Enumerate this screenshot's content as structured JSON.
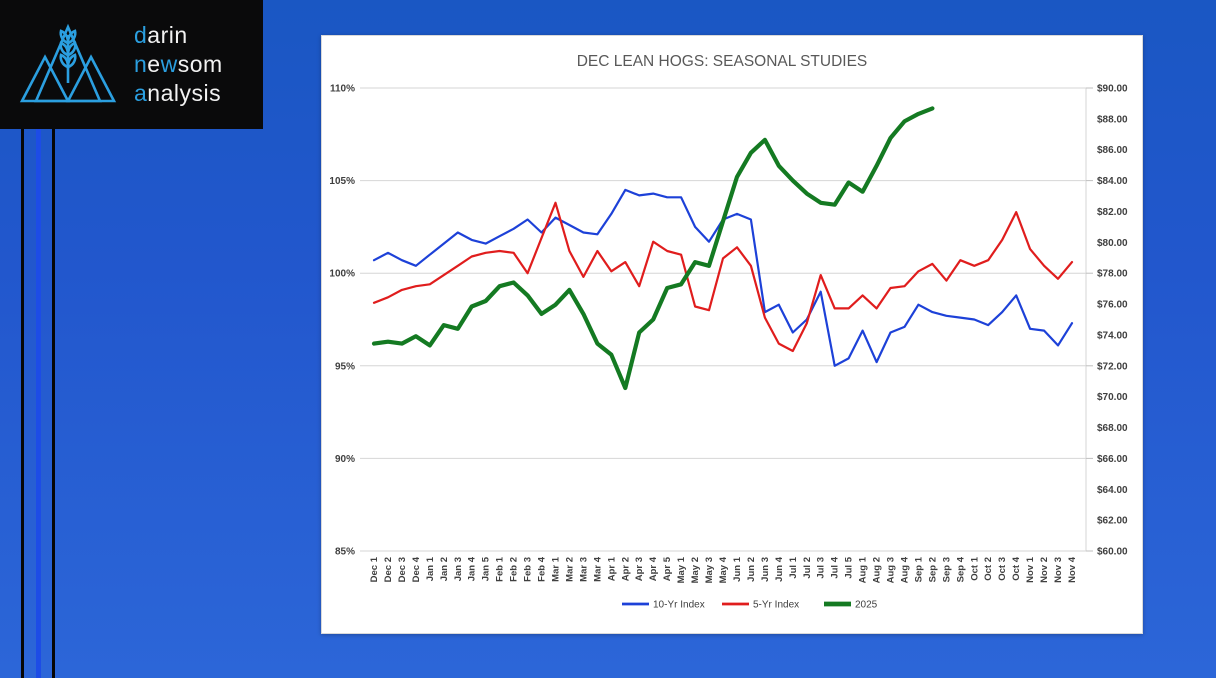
{
  "page": {
    "background_top": "#1a57c3",
    "background_bottom": "#2c66d8"
  },
  "logo": {
    "background": "#0a0a0b",
    "accent_color": "#2b9fe0",
    "text_color": "#f2f2f2",
    "icon": "mountains-wheat-icon",
    "lines": [
      [
        {
          "t": "d",
          "accent": true
        },
        {
          "t": "arin",
          "accent": false
        }
      ],
      [
        {
          "t": "n",
          "accent": true
        },
        {
          "t": "e",
          "accent": false
        },
        {
          "t": "w",
          "accent": true
        },
        {
          "t": "som",
          "accent": false
        }
      ],
      [
        {
          "t": "a",
          "accent": true
        },
        {
          "t": "nalysis",
          "accent": false
        }
      ]
    ]
  },
  "decor": {
    "stripes": [
      {
        "name": "black-stripe-left",
        "color": "#060606",
        "x": 21,
        "width": 3
      },
      {
        "name": "blue-stripe",
        "color": "#1d4ce6",
        "x": 36,
        "width": 5
      },
      {
        "name": "black-stripe-right",
        "color": "#060606",
        "x": 52,
        "width": 3
      }
    ]
  },
  "chart_data": {
    "type": "line",
    "title": "DEC LEAN HOGS: SEASONAL STUDIES",
    "grid": true,
    "legend_position": "bottom",
    "left_axis": {
      "format": "percent",
      "min": 85,
      "max": 110,
      "step": 5,
      "labels": [
        "110%",
        "105%",
        "100%",
        "95%",
        "90%",
        "85%"
      ]
    },
    "right_axis": {
      "format": "dollar",
      "min": 60,
      "max": 90,
      "step": 2,
      "labels": [
        "$90.00",
        "$88.00",
        "$86.00",
        "$84.00",
        "$82.00",
        "$80.00",
        "$78.00",
        "$76.00",
        "$74.00",
        "$72.00",
        "$70.00",
        "$68.00",
        "$66.00",
        "$64.00",
        "$62.00",
        "$60.00"
      ]
    },
    "categories": [
      "Dec 1",
      "Dec 2",
      "Dec 3",
      "Dec 4",
      "Jan 1",
      "Jan 2",
      "Jan 3",
      "Jan 4",
      "Jan 5",
      "Feb 1",
      "Feb 2",
      "Feb 3",
      "Feb 4",
      "Mar 1",
      "Mar 2",
      "Mar 3",
      "Mar 4",
      "Apr 1",
      "Apr 2",
      "Apr 3",
      "Apr 4",
      "Apr 5",
      "May 1",
      "May 2",
      "May 3",
      "May 4",
      "Jun 1",
      "Jun 2",
      "Jun 3",
      "Jun 4",
      "Jul 1",
      "Jul 2",
      "Jul 3",
      "Jul 4",
      "Jul 5",
      "Aug 1",
      "Aug 2",
      "Aug 3",
      "Aug 4",
      "Sep 1",
      "Sep 2",
      "Sep 3",
      "Sep 4",
      "Oct 1",
      "Oct 2",
      "Oct 3",
      "Oct 4",
      "Nov 1",
      "Nov 2",
      "Nov 3",
      "Nov 4"
    ],
    "series": [
      {
        "name": "10-Yr Index",
        "color": "#1d41d8",
        "stroke_width": 2.2,
        "values": [
          100.7,
          101.1,
          100.7,
          100.4,
          101.0,
          101.6,
          102.2,
          101.8,
          101.6,
          102.0,
          102.4,
          102.9,
          102.2,
          103.0,
          102.6,
          102.2,
          102.1,
          103.2,
          104.5,
          104.2,
          104.3,
          104.1,
          104.1,
          102.5,
          101.7,
          102.9,
          103.2,
          102.9,
          97.9,
          98.3,
          96.8,
          97.5,
          99.0,
          95.0,
          95.4,
          96.9,
          95.2,
          96.8,
          97.1,
          98.3,
          97.9,
          97.7,
          97.6,
          97.5,
          97.2,
          97.9,
          98.8,
          97.0,
          96.9,
          96.1,
          97.3
        ]
      },
      {
        "name": "5-Yr Index",
        "color": "#e01d1d",
        "stroke_width": 2.2,
        "values": [
          98.4,
          98.7,
          99.1,
          99.3,
          99.4,
          99.9,
          100.4,
          100.9,
          101.1,
          101.2,
          101.1,
          100.0,
          101.9,
          103.8,
          101.2,
          99.8,
          101.2,
          100.1,
          100.6,
          99.3,
          101.7,
          101.2,
          101.0,
          98.2,
          98.0,
          100.8,
          101.4,
          100.4,
          97.6,
          96.2,
          95.8,
          97.3,
          99.9,
          98.1,
          98.1,
          98.8,
          98.1,
          99.2,
          99.3,
          100.1,
          100.5,
          99.6,
          100.7,
          100.4,
          100.7,
          101.8,
          103.3,
          101.3,
          100.4,
          99.7,
          100.6
        ]
      },
      {
        "name": "2025",
        "color": "#147a22",
        "stroke_width": 4.2,
        "values": [
          96.2,
          96.3,
          96.2,
          96.6,
          96.1,
          97.2,
          97.0,
          98.2,
          98.5,
          99.3,
          99.5,
          98.8,
          97.8,
          98.3,
          99.1,
          97.8,
          96.2,
          95.6,
          93.8,
          96.8,
          97.5,
          99.2,
          99.4,
          100.6,
          100.4,
          102.8,
          105.2,
          106.5,
          107.2,
          105.8,
          105.0,
          104.3,
          103.8,
          103.7,
          104.9,
          104.4,
          105.8,
          107.3,
          108.2,
          108.6,
          108.9
        ]
      }
    ],
    "styles": {
      "title_color": "#595959",
      "title_size": 15.5,
      "axis_label_color": "#3f3f3f",
      "gridline_color": "#d6d6d6",
      "tick_color": "#bfbfbf",
      "legend_text_color": "#404040"
    }
  }
}
